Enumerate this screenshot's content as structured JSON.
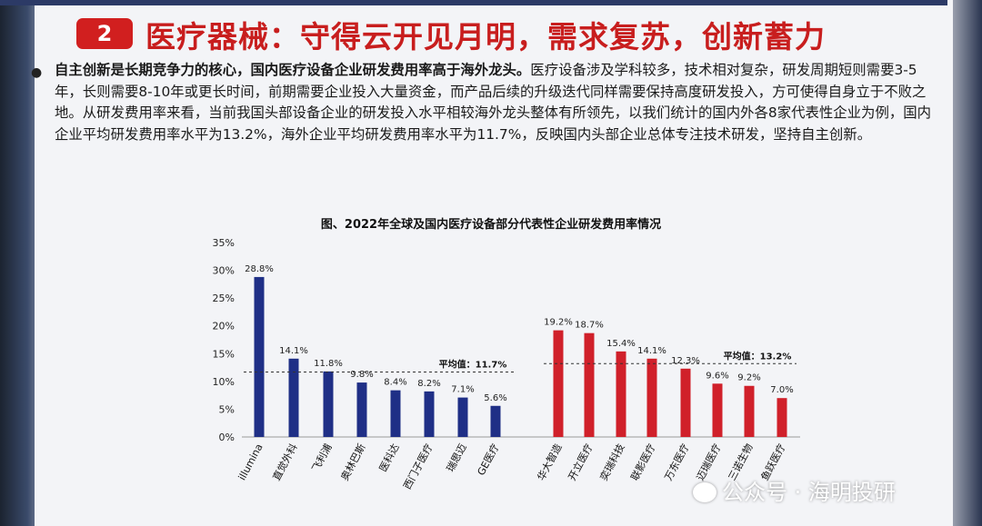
{
  "header": {
    "number": "2",
    "title": "医疗器械：守得云开见月明，需求复苏，创新蓄力"
  },
  "body": {
    "bold_lead": "自主创新是长期竞争力的核心，国内医疗设备企业研发费用率高于海外龙头。",
    "text": "医疗设备涉及学科较多，技术相对复杂，研发周期短则需要3-5年，长则需要8-10年或更长时间，前期需要企业投入大量资金，而产品后续的升级迭代同样需要保持高度研发投入，方可使得自身立于不败之地。从研发费用率来看，当前我国头部设备企业的研发投入水平相较海外龙头整体有所领先，以我们统计的国内外各8家代表性企业为例，国内企业平均研发费用率水平为13.2%，海外企业平均研发费用率水平为11.7%，反映国内头部企业总体专注技术研发，坚持自主创新。"
  },
  "chart_data": {
    "type": "bar",
    "title": "图、2022年全球及国内医疗设备部分代表性企业研发费用率情况",
    "ylim": [
      0,
      35
    ],
    "y_ticks": [
      "0%",
      "5%",
      "10%",
      "15%",
      "20%",
      "25%",
      "30%",
      "35%"
    ],
    "series": [
      {
        "group": "overseas",
        "color": "#1f2f86",
        "categories": [
          "illumina",
          "直觉外科",
          "飞利浦",
          "奥林巴斯",
          "医科达",
          "西门子医疗",
          "瑞思迈",
          "GE医疗"
        ],
        "values": [
          28.8,
          14.1,
          11.8,
          9.8,
          8.4,
          8.2,
          7.1,
          5.6
        ],
        "value_labels": [
          "28.8%",
          "14.1%",
          "11.8%",
          "9.8%",
          "8.4%",
          "8.2%",
          "7.1%",
          "5.6%"
        ],
        "average": 11.7,
        "average_label": "平均值：11.7%"
      },
      {
        "group": "domestic",
        "color": "#d0202a",
        "categories": [
          "华大智造",
          "开立医疗",
          "奕瑞科技",
          "联影医疗",
          "万东医疗",
          "迈瑞医疗",
          "三诺生物",
          "鱼跃医疗"
        ],
        "values": [
          19.2,
          18.7,
          15.4,
          14.1,
          12.3,
          9.6,
          9.2,
          7.0
        ],
        "value_labels": [
          "19.2%",
          "18.7%",
          "15.4%",
          "14.1%",
          "12.3%",
          "9.6%",
          "9.2%",
          "7.0%"
        ],
        "average": 13.2,
        "average_label": "平均值：13.2%"
      }
    ]
  },
  "watermark": {
    "text": "公众号 · 海明投研"
  }
}
